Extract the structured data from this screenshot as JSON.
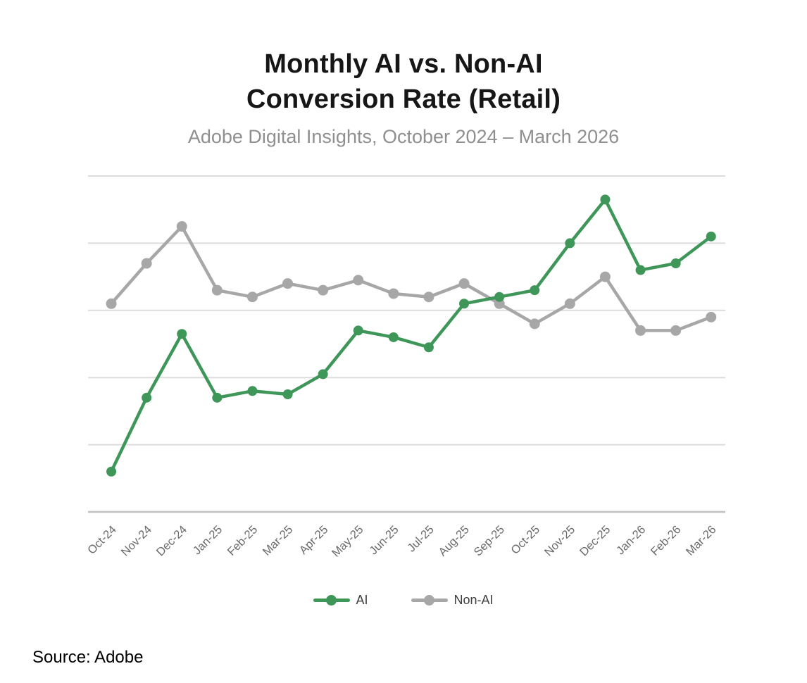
{
  "page": {
    "source_note": "Source: Adobe"
  },
  "chart_data": {
    "type": "line",
    "title": "Monthly AI vs. Non-AI Conversion Rate (Retail)",
    "title_line1": "Monthly AI vs. Non-AI",
    "title_line2": "Conversion Rate (Retail)",
    "subtitle": "Adobe Digital Insights, October 2024 – March 2026",
    "categories": [
      "Oct-24",
      "Nov-24",
      "Dec-24",
      "Jan-25",
      "Feb-25",
      "Mar-25",
      "Apr-25",
      "May-25",
      "Jun-25",
      "Jul-25",
      "Aug-25",
      "Sep-25",
      "Oct-25",
      "Nov-25",
      "Dec-25",
      "Jan-26",
      "Feb-26",
      "Mar-26"
    ],
    "series": [
      {
        "name": "AI",
        "color": "#3e9659",
        "values": [
          0.6,
          1.7,
          2.65,
          1.7,
          1.8,
          1.75,
          2.05,
          2.7,
          2.6,
          2.45,
          3.1,
          3.2,
          3.3,
          4.0,
          4.65,
          3.6,
          3.7,
          4.1
        ]
      },
      {
        "name": "Non-AI",
        "color": "#a7a7a7",
        "values": [
          3.1,
          3.7,
          4.25,
          3.3,
          3.2,
          3.4,
          3.3,
          3.45,
          3.25,
          3.2,
          3.4,
          3.1,
          2.8,
          3.1,
          3.5,
          2.7,
          2.7,
          2.9
        ]
      }
    ],
    "xlabel": "",
    "ylabel": "",
    "ylim": [
      0,
      5
    ],
    "y_gridline_step": 1,
    "y_axis_labels_visible": false,
    "grid": "horizontal",
    "legend_position": "bottom",
    "colors": {
      "gridline": "#dcdcdc",
      "axis_line": "#bfbfbf",
      "x_tick_label": "#6a6a6a",
      "title": "#161616",
      "subtitle": "#8f8f8f",
      "legend_text": "#3f3f3f"
    }
  }
}
